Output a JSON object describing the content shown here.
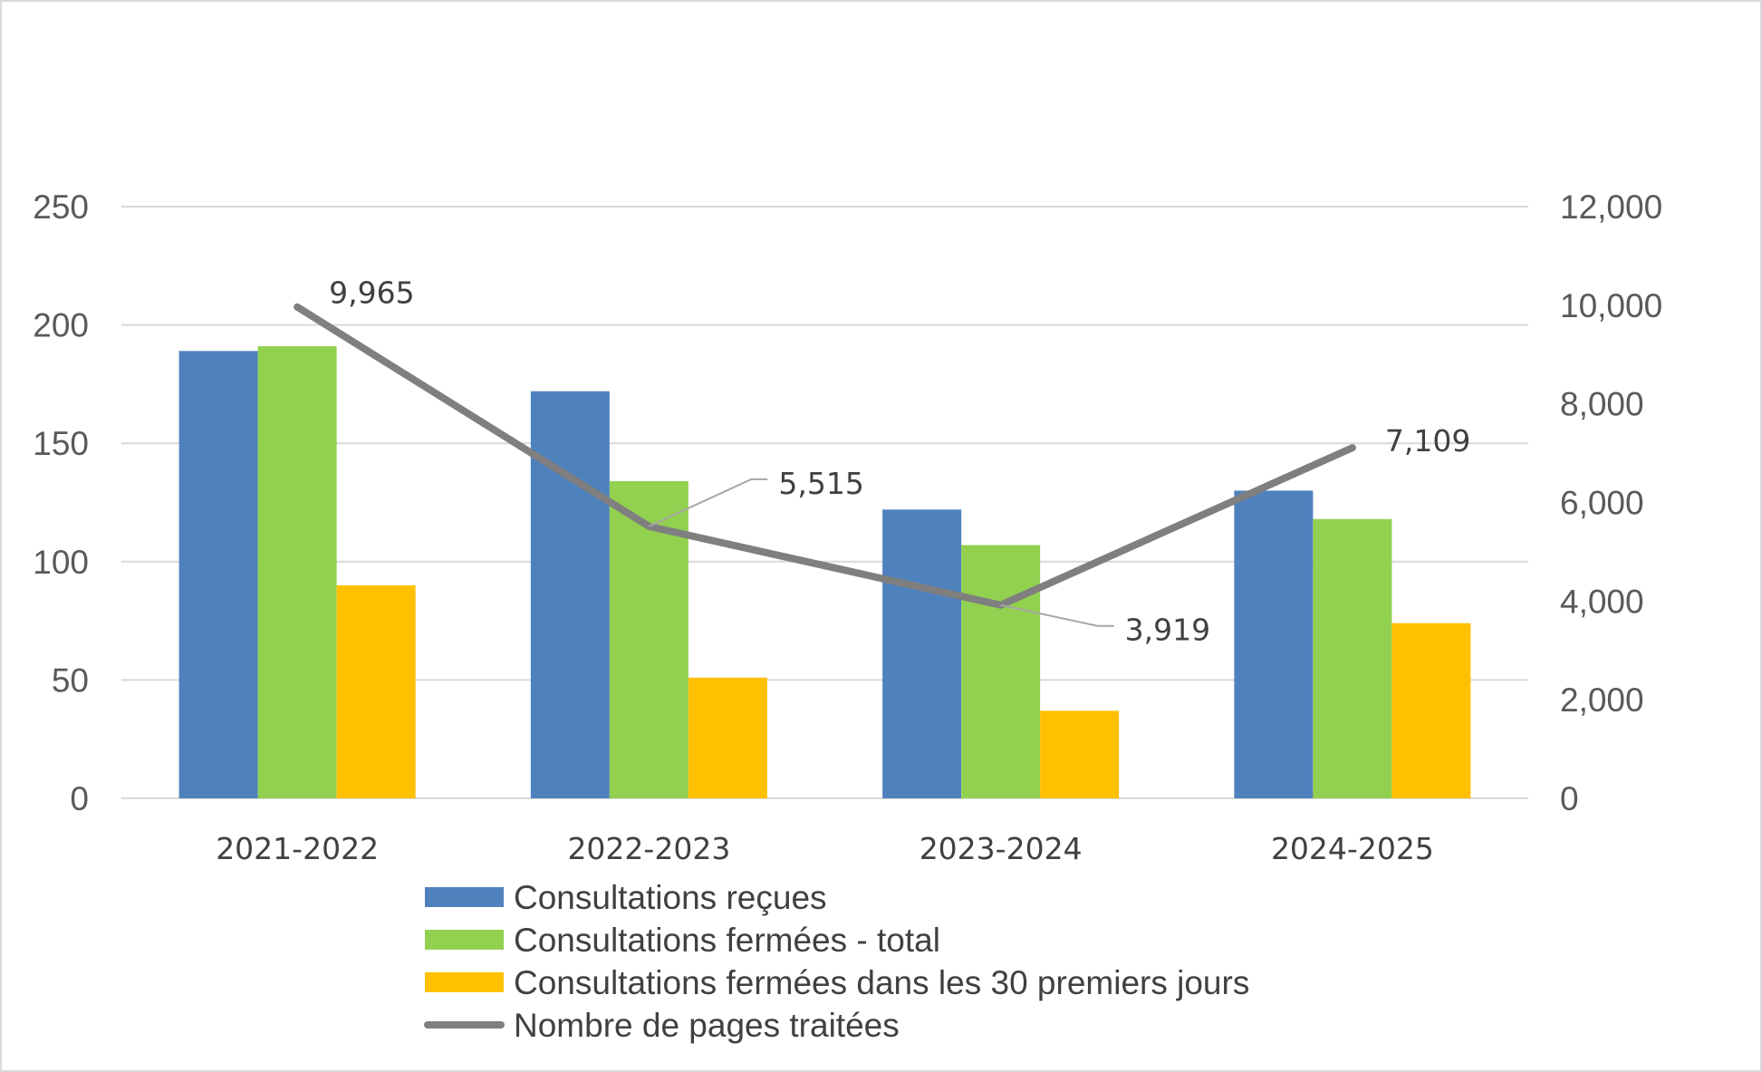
{
  "chart_data": {
    "type": "bar",
    "categories": [
      "2021-2022",
      "2022-2023",
      "2023-2024",
      "2024-2025"
    ],
    "series": [
      {
        "name": "Consultations reçues",
        "type": "bar",
        "axis": "left",
        "color": "#4f81bd",
        "values": [
          189,
          172,
          122,
          130
        ]
      },
      {
        "name": "Consultations fermées - total",
        "type": "bar",
        "axis": "left",
        "color": "#92d050",
        "values": [
          191,
          134,
          107,
          118
        ]
      },
      {
        "name": "Consultations fermées dans les 30 premiers jours",
        "type": "bar",
        "axis": "left",
        "color": "#ffc000",
        "values": [
          90,
          51,
          37,
          74
        ]
      },
      {
        "name": "Nombre de pages traitées",
        "type": "line",
        "axis": "right",
        "color": "#7f7f7f",
        "values": [
          9965,
          5515,
          3919,
          7109
        ],
        "data_labels": [
          "9,965",
          "5,515",
          "3,919",
          "7,109"
        ]
      }
    ],
    "y_left": {
      "lim": [
        0,
        250
      ],
      "ticks": [
        "0",
        "50",
        "100",
        "150",
        "200",
        "250"
      ]
    },
    "y_right": {
      "lim": [
        0,
        12000
      ],
      "ticks": [
        "0",
        "2,000",
        "4,000",
        "6,000",
        "8,000",
        "10,000",
        "12,000"
      ]
    },
    "grid": true,
    "legend": "bottom"
  }
}
